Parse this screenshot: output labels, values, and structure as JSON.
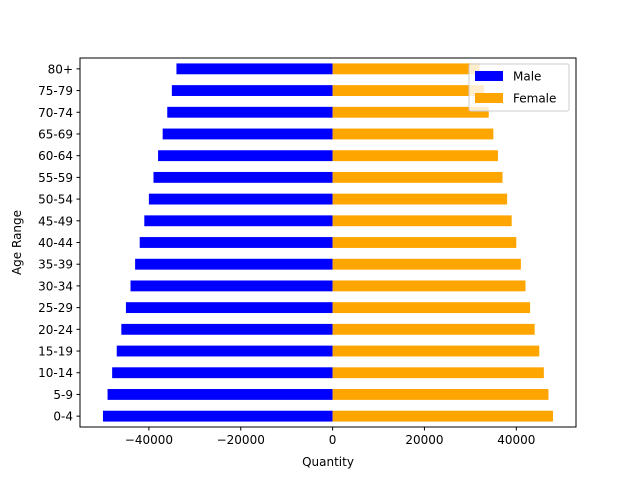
{
  "chart_data": {
    "type": "bar",
    "orientation": "horizontal",
    "xlabel": "Quantity",
    "ylabel": "Age Range",
    "xlim": [
      -55000,
      53000
    ],
    "xticks": [
      -40000,
      -20000,
      0,
      20000,
      40000
    ],
    "xtick_labels": [
      "−40000",
      "−20000",
      "0",
      "20000",
      "40000"
    ],
    "categories": [
      "0-4",
      "5-9",
      "10-14",
      "15-19",
      "20-24",
      "25-29",
      "30-34",
      "35-39",
      "40-44",
      "45-49",
      "50-54",
      "55-59",
      "60-64",
      "65-69",
      "70-74",
      "75-79",
      "80+"
    ],
    "series": [
      {
        "name": "Male",
        "color": "#0000ff",
        "values": [
          -50000,
          -49000,
          -48000,
          -47000,
          -46000,
          -45000,
          -44000,
          -43000,
          -42000,
          -41000,
          -40000,
          -39000,
          -38000,
          -37000,
          -36000,
          -35000,
          -34000
        ]
      },
      {
        "name": "Female",
        "color": "#ffa500",
        "values": [
          48000,
          47000,
          46000,
          45000,
          44000,
          43000,
          42000,
          41000,
          40000,
          39000,
          38000,
          37000,
          36000,
          35000,
          34000,
          33000,
          32000
        ]
      }
    ],
    "legend_position": "upper right",
    "grid": false
  }
}
